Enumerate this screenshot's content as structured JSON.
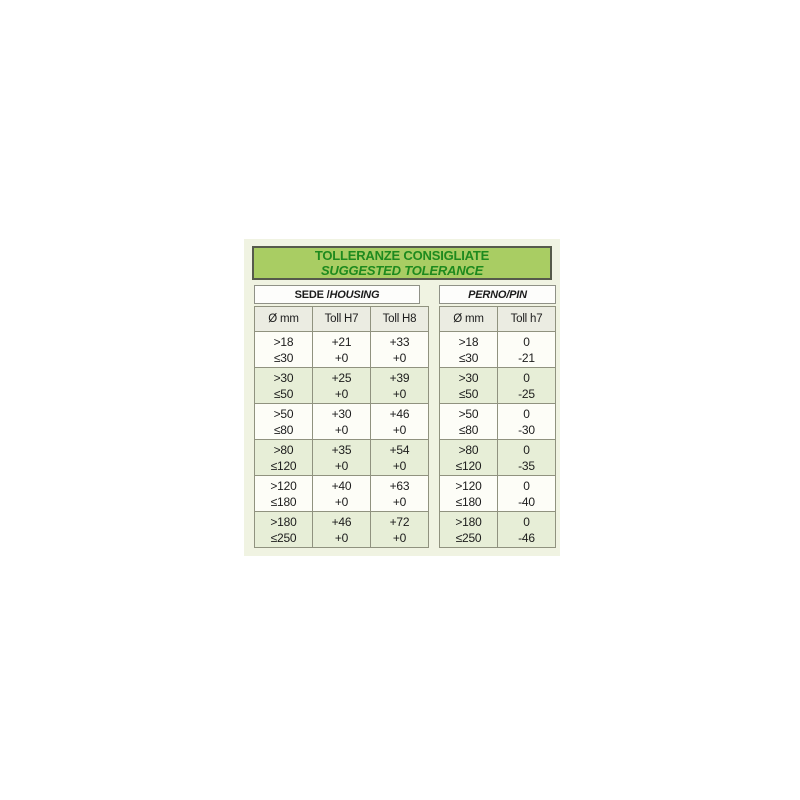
{
  "panel": {
    "title_line1": "TOLLERANZE CONSIGLIATE",
    "title_line2": "SUGGESTED TOLERANCE",
    "colors": {
      "title_bg": "#a9cd63",
      "title_text": "#1e8a1e",
      "panel_bg": "#f0f3e2",
      "row_bg": "#fdfdf7",
      "row_alt_bg": "#e7eed7",
      "header_cell_bg": "#ebece2",
      "border": "#90927f"
    }
  },
  "housing": {
    "title_plain": "SEDE / ",
    "title_italic": "HOUSING",
    "columns": [
      "Ø mm",
      "Toll H7",
      "Toll H8"
    ],
    "rows": [
      {
        "range": [
          ">18",
          "≤30"
        ],
        "h7": [
          "+21",
          "+0"
        ],
        "h8": [
          "+33",
          "+0"
        ]
      },
      {
        "range": [
          ">30",
          "≤50"
        ],
        "h7": [
          "+25",
          "+0"
        ],
        "h8": [
          "+39",
          "+0"
        ]
      },
      {
        "range": [
          ">50",
          "≤80"
        ],
        "h7": [
          "+30",
          "+0"
        ],
        "h8": [
          "+46",
          "+0"
        ]
      },
      {
        "range": [
          ">80",
          "≤120"
        ],
        "h7": [
          "+35",
          "+0"
        ],
        "h8": [
          "+54",
          "+0"
        ]
      },
      {
        "range": [
          ">120",
          "≤180"
        ],
        "h7": [
          "+40",
          "+0"
        ],
        "h8": [
          "+63",
          "+0"
        ]
      },
      {
        "range": [
          ">180",
          "≤250"
        ],
        "h7": [
          "+46",
          "+0"
        ],
        "h8": [
          "+72",
          "+0"
        ]
      }
    ]
  },
  "pin": {
    "title": "PERNO/PIN",
    "columns": [
      "Ø mm",
      "Toll h7"
    ],
    "rows": [
      {
        "range": [
          ">18",
          "≤30"
        ],
        "h7": [
          "0",
          "-21"
        ]
      },
      {
        "range": [
          ">30",
          "≤50"
        ],
        "h7": [
          "0",
          "-25"
        ]
      },
      {
        "range": [
          ">50",
          "≤80"
        ],
        "h7": [
          "0",
          "-30"
        ]
      },
      {
        "range": [
          ">80",
          "≤120"
        ],
        "h7": [
          "0",
          "-35"
        ]
      },
      {
        "range": [
          ">120",
          "≤180"
        ],
        "h7": [
          "0",
          "-40"
        ]
      },
      {
        "range": [
          ">180",
          "≤250"
        ],
        "h7": [
          "0",
          "-46"
        ]
      }
    ]
  }
}
